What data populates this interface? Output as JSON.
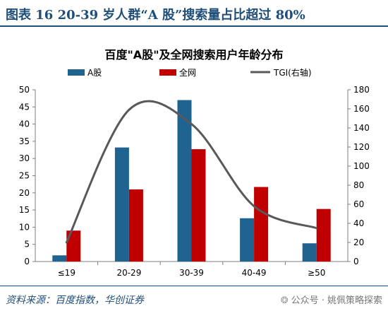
{
  "header": {
    "title": "图表 16    20-39 岁人群“A 股”搜索量占比超过 80%"
  },
  "chart_data": {
    "type": "bar",
    "title": "百度\"A股\"及全网搜索用户年龄分布",
    "categories": [
      "≤19",
      "20-29",
      "30-39",
      "40-49",
      "≥50"
    ],
    "series": [
      {
        "name": "A股",
        "kind": "bar",
        "axis": "left",
        "color": "#1f6391",
        "values": [
          1.8,
          33.2,
          47.0,
          12.6,
          5.3
        ]
      },
      {
        "name": "全网",
        "kind": "bar",
        "axis": "left",
        "color": "#c00000",
        "values": [
          9.0,
          21.0,
          32.7,
          21.7,
          15.3
        ]
      },
      {
        "name": "TGI(右轴)",
        "kind": "line",
        "axis": "right",
        "color": "#595959",
        "values": [
          20,
          159,
          144,
          58,
          35
        ]
      }
    ],
    "y_left": {
      "ticks": [
        "0",
        "5",
        "10",
        "15",
        "20",
        "25",
        "30",
        "35",
        "40",
        "45",
        "50"
      ],
      "lim": [
        0,
        50
      ]
    },
    "y_right": {
      "ticks": [
        "0",
        "20",
        "40",
        "60",
        "80",
        "100",
        "120",
        "140",
        "160",
        "180"
      ],
      "lim": [
        0,
        180
      ]
    },
    "legend_position": "top",
    "grid": false
  },
  "footer": {
    "source": "资料来源：百度指数，华创证券",
    "watermark": "公众号 · 姚佩策略探索"
  }
}
